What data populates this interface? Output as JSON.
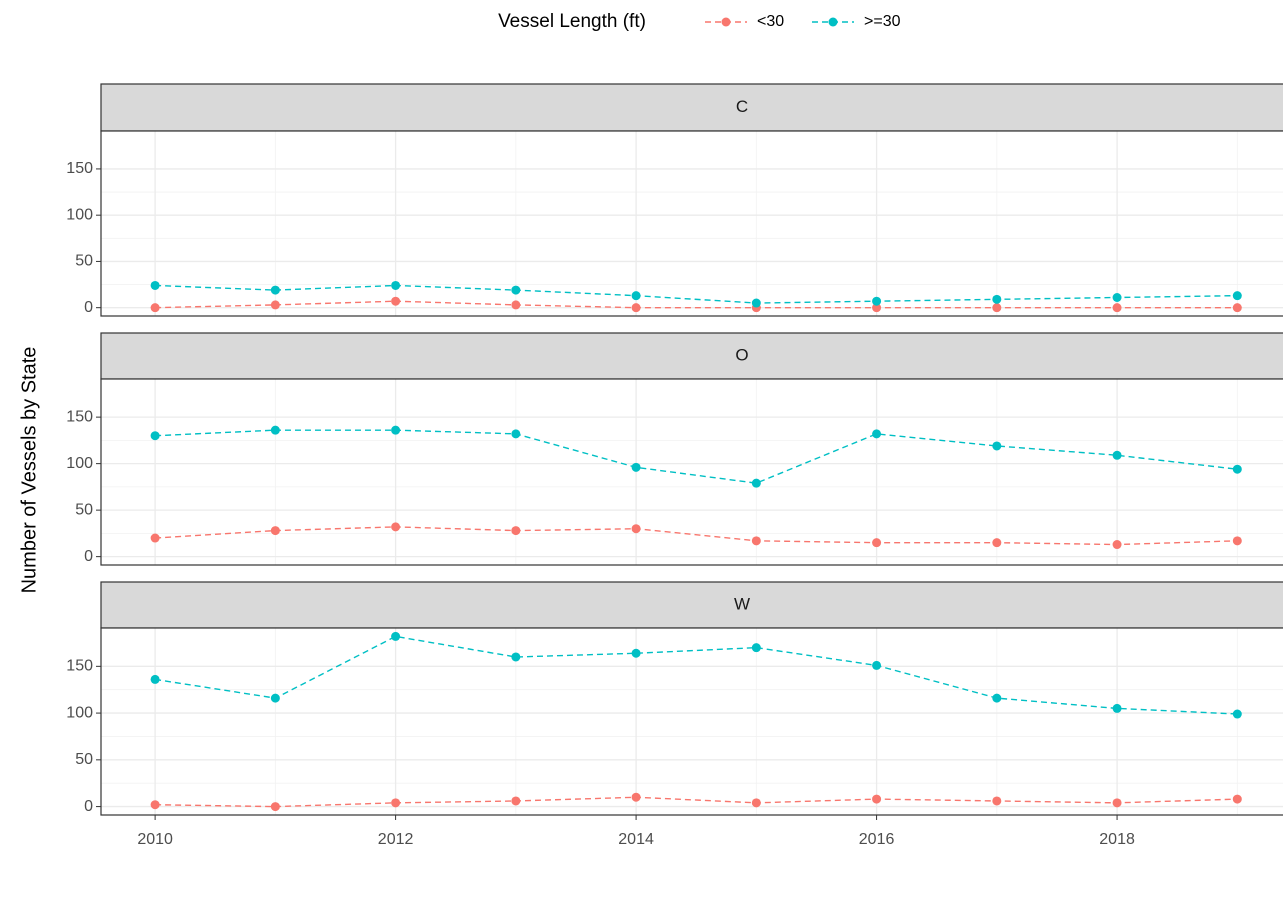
{
  "legend_title": "Vessel Length (ft)",
  "y_label": "Number of Vessels by State",
  "chart_data": [
    {
      "type": "line",
      "title": "C",
      "x": [
        2010,
        2011,
        2012,
        2013,
        2014,
        2015,
        2016,
        2017,
        2018,
        2019
      ],
      "series": [
        {
          "name": "<30",
          "color": "#F8766D",
          "values": [
            0,
            3,
            7,
            3,
            0,
            0,
            0,
            0,
            0,
            0
          ]
        },
        {
          "name": ">=30",
          "color": "#00BFC4",
          "values": [
            24,
            19,
            24,
            19,
            13,
            5,
            7,
            9,
            11,
            13
          ]
        }
      ],
      "xlim": [
        2009.55,
        2019.38
      ],
      "xticks": [
        2010,
        2012,
        2014,
        2016,
        2018
      ],
      "ylim": [
        -9,
        191
      ],
      "yticks": [
        0,
        50,
        100,
        150
      ],
      "grid": true,
      "line_style": "dashed"
    },
    {
      "type": "line",
      "title": "O",
      "x": [
        2010,
        2011,
        2012,
        2013,
        2014,
        2015,
        2016,
        2017,
        2018,
        2019
      ],
      "series": [
        {
          "name": "<30",
          "color": "#F8766D",
          "values": [
            20,
            28,
            32,
            28,
            30,
            17,
            15,
            15,
            13,
            17
          ]
        },
        {
          "name": ">=30",
          "color": "#00BFC4",
          "values": [
            130,
            136,
            136,
            132,
            96,
            79,
            132,
            119,
            109,
            94
          ]
        }
      ],
      "xlim": [
        2009.55,
        2019.38
      ],
      "xticks": [
        2010,
        2012,
        2014,
        2016,
        2018
      ],
      "ylim": [
        -9,
        191
      ],
      "yticks": [
        0,
        50,
        100,
        150
      ],
      "grid": true,
      "line_style": "dashed"
    },
    {
      "type": "line",
      "title": "W",
      "x": [
        2010,
        2011,
        2012,
        2013,
        2014,
        2015,
        2016,
        2017,
        2018,
        2019
      ],
      "series": [
        {
          "name": "<30",
          "color": "#F8766D",
          "values": [
            2,
            0,
            4,
            6,
            10,
            4,
            8,
            6,
            4,
            8
          ]
        },
        {
          "name": ">=30",
          "color": "#00BFC4",
          "values": [
            136,
            116,
            182,
            160,
            164,
            170,
            151,
            116,
            105,
            99
          ]
        }
      ],
      "xlim": [
        2009.55,
        2019.38
      ],
      "xticks": [
        2010,
        2012,
        2014,
        2016,
        2018
      ],
      "ylim": [
        -9,
        191
      ],
      "yticks": [
        0,
        50,
        100,
        150
      ],
      "grid": true,
      "line_style": "dashed"
    }
  ]
}
